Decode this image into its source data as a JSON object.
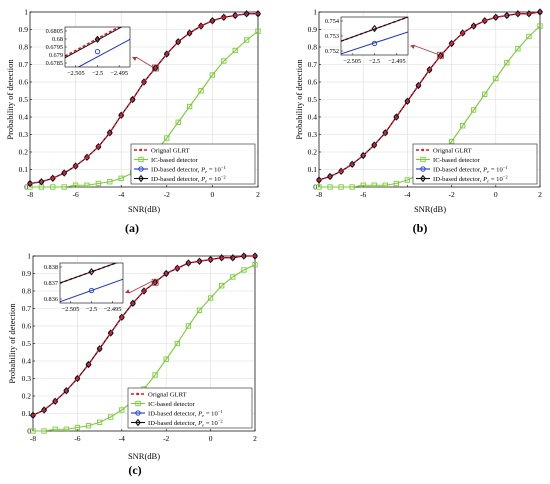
{
  "chart_data": [
    {
      "type": "line",
      "panel_label": "(a)",
      "xlabel": "SNR(dB)",
      "ylabel": "Probability of detection",
      "xlim": [
        -8,
        2
      ],
      "ylim": [
        0,
        1
      ],
      "xticks": [
        "-8",
        "-6",
        "-4",
        "-2",
        "0",
        "2"
      ],
      "yticks": [
        "0",
        "0.1",
        "0.2",
        "0.3",
        "0.4",
        "0.5",
        "0.6",
        "0.7",
        "0.8",
        "0.9",
        "1"
      ],
      "grid": true,
      "legend_position": "bottom-right",
      "x": [
        -8,
        -7.5,
        -7,
        -6.5,
        -6,
        -5.5,
        -5,
        -4.5,
        -4,
        -3.5,
        -3,
        -2.5,
        -2,
        -1.5,
        -1,
        -0.5,
        0,
        0.5,
        1,
        1.5,
        2
      ],
      "series": [
        {
          "name": "Orignal GLRT",
          "color": "#e8141c",
          "style": "dashed",
          "marker": "point",
          "values": [
            0.02,
            0.03,
            0.05,
            0.08,
            0.12,
            0.17,
            0.23,
            0.31,
            0.41,
            0.5,
            0.6,
            0.68,
            0.76,
            0.83,
            0.88,
            0.92,
            0.95,
            0.97,
            0.98,
            0.99,
            0.99
          ]
        },
        {
          "name": "IC-based detector",
          "color": "#7ccb3a",
          "style": "solid",
          "marker": "square",
          "values": [
            0,
            0,
            0,
            0,
            0.01,
            0.01,
            0.02,
            0.03,
            0.05,
            0.08,
            0.13,
            0.2,
            0.28,
            0.37,
            0.46,
            0.55,
            0.64,
            0.72,
            0.78,
            0.84,
            0.89
          ]
        },
        {
          "name": "ID-based detector, P_e = 10^-1",
          "color": "#1e36c8",
          "style": "solid",
          "marker": "circle",
          "values": [
            0.02,
            0.03,
            0.05,
            0.08,
            0.12,
            0.17,
            0.23,
            0.31,
            0.41,
            0.5,
            0.6,
            0.68,
            0.76,
            0.83,
            0.88,
            0.92,
            0.95,
            0.97,
            0.98,
            0.99,
            0.99
          ]
        },
        {
          "name": "ID-based detector, P_e = 10^-2",
          "color": "#101010",
          "style": "solid",
          "marker": "diamond",
          "values": [
            0.02,
            0.03,
            0.05,
            0.08,
            0.12,
            0.17,
            0.23,
            0.31,
            0.41,
            0.5,
            0.6,
            0.68,
            0.76,
            0.83,
            0.88,
            0.92,
            0.95,
            0.97,
            0.98,
            0.99,
            0.99
          ]
        }
      ],
      "legend_labels": [
        "Orignal GLRT",
        "IC-based detector",
        "ID-based detector, ",
        "ID-based detector, "
      ],
      "legend_math": [
        "",
        "",
        "P",
        "P"
      ],
      "legend_math_tail": [
        "",
        "",
        " = 10",
        " = 10"
      ],
      "legend_exp": [
        "",
        "",
        "−1",
        "−2"
      ],
      "inset": {
        "xticks": [
          "−2.505",
          "−2.5",
          "−2.495"
        ],
        "yticks": [
          "0.6805",
          "0.68",
          "0.6795",
          "0.679",
          "0.6785"
        ],
        "xlim": [
          -2.506,
          -2.494
        ],
        "ylim": [
          0.6782,
          0.6808
        ],
        "series": [
          {
            "color": "#e8141c",
            "style": "dashed",
            "x": [
              -2.506,
              -2.494
            ],
            "y": [
              0.6789,
              0.6812
            ]
          },
          {
            "color": "#101010",
            "style": "solid",
            "x": [
              -2.506,
              -2.494
            ],
            "y": [
              0.6788,
              0.6811
            ]
          },
          {
            "color": "#1e36c8",
            "style": "solid",
            "x": [
              -2.5035,
              -2.494
            ],
            "y": [
              0.6782,
              0.68
            ]
          }
        ],
        "markers": [
          {
            "color": "#101010",
            "shape": "diamond",
            "x": -2.5,
            "y": 0.68
          },
          {
            "color": "#1e36c8",
            "shape": "circle",
            "x": -2.5,
            "y": 0.6792
          }
        ]
      },
      "callout_point": {
        "x": -2.5,
        "y": 0.68
      }
    },
    {
      "type": "line",
      "panel_label": "(b)",
      "xlabel": "SNR(dB)",
      "ylabel": "Probability of detection",
      "xlim": [
        -8,
        2
      ],
      "ylim": [
        0,
        1
      ],
      "xticks": [
        "-8",
        "-6",
        "-4",
        "-2",
        "0",
        "2"
      ],
      "yticks": [
        "0",
        "0.1",
        "0.2",
        "0.3",
        "0.4",
        "0.5",
        "0.6",
        "0.7",
        "0.8",
        "0.9",
        "1"
      ],
      "grid": true,
      "legend_position": "bottom-right",
      "x": [
        -8,
        -7.5,
        -7,
        -6.5,
        -6,
        -5.5,
        -5,
        -4.5,
        -4,
        -3.5,
        -3,
        -2.5,
        -2,
        -1.5,
        -1,
        -0.5,
        0,
        0.5,
        1,
        1.5,
        2
      ],
      "series": [
        {
          "name": "Orignal GLRT",
          "color": "#e8141c",
          "style": "dashed",
          "marker": "point",
          "values": [
            0.04,
            0.06,
            0.09,
            0.13,
            0.18,
            0.24,
            0.31,
            0.4,
            0.49,
            0.58,
            0.67,
            0.75,
            0.82,
            0.88,
            0.92,
            0.95,
            0.97,
            0.98,
            0.99,
            0.99,
            1.0
          ]
        },
        {
          "name": "IC-based detector",
          "color": "#7ccb3a",
          "style": "solid",
          "marker": "square",
          "values": [
            0,
            0,
            0,
            0,
            0.01,
            0.01,
            0.01,
            0.02,
            0.04,
            0.07,
            0.12,
            0.18,
            0.26,
            0.35,
            0.44,
            0.53,
            0.62,
            0.71,
            0.79,
            0.86,
            0.92
          ]
        },
        {
          "name": "ID-based detector, P_e = 10^-1",
          "color": "#1e36c8",
          "style": "solid",
          "marker": "circle",
          "values": [
            0.04,
            0.06,
            0.09,
            0.13,
            0.18,
            0.24,
            0.31,
            0.4,
            0.49,
            0.58,
            0.67,
            0.75,
            0.82,
            0.88,
            0.92,
            0.95,
            0.97,
            0.98,
            0.99,
            0.99,
            1.0
          ]
        },
        {
          "name": "ID-based detector, P_e = 10^-2",
          "color": "#101010",
          "style": "solid",
          "marker": "diamond",
          "values": [
            0.04,
            0.06,
            0.09,
            0.13,
            0.18,
            0.24,
            0.31,
            0.4,
            0.49,
            0.58,
            0.67,
            0.75,
            0.82,
            0.88,
            0.92,
            0.95,
            0.97,
            0.98,
            0.99,
            0.99,
            1.0
          ]
        }
      ],
      "legend_labels": [
        "Orignal GLRT",
        "IC-based detector",
        "ID-based detector, ",
        "ID-based detector, "
      ],
      "legend_math": [
        "",
        "",
        "P",
        "P"
      ],
      "legend_math_tail": [
        "",
        "",
        " = 10",
        " = 10"
      ],
      "legend_exp": [
        "",
        "",
        "−1",
        "−2"
      ],
      "inset": {
        "xticks": [
          "−2.505",
          "−2.5",
          "−2.495"
        ],
        "yticks": [
          "0.754",
          "0.753",
          "0.752"
        ],
        "xlim": [
          -2.506,
          -2.494
        ],
        "ylim": [
          0.7512,
          0.7545
        ],
        "series": [
          {
            "color": "#e8141c",
            "style": "dashed",
            "x": [
              -2.506,
              -2.494
            ],
            "y": [
              0.7524,
              0.7545
            ]
          },
          {
            "color": "#101010",
            "style": "solid",
            "x": [
              -2.506,
              -2.494
            ],
            "y": [
              0.7524,
              0.7545
            ]
          },
          {
            "color": "#1e36c8",
            "style": "solid",
            "x": [
              -2.506,
              -2.494
            ],
            "y": [
              0.7513,
              0.7532
            ]
          }
        ],
        "markers": [
          {
            "color": "#101010",
            "shape": "diamond",
            "x": -2.5,
            "y": 0.7535
          },
          {
            "color": "#1e36c8",
            "shape": "circle",
            "x": -2.5,
            "y": 0.7522
          }
        ]
      },
      "callout_point": {
        "x": -2.5,
        "y": 0.753
      }
    },
    {
      "type": "line",
      "panel_label": "(c)",
      "xlabel": "SNR(dB)",
      "ylabel": "Probability of detection",
      "xlim": [
        -8,
        2
      ],
      "ylim": [
        0,
        1
      ],
      "xticks": [
        "-8",
        "-6",
        "-4",
        "-2",
        "0",
        "2"
      ],
      "yticks": [
        "0",
        "0.1",
        "0.2",
        "0.3",
        "0.4",
        "0.5",
        "0.6",
        "0.7",
        "0.8",
        "0.9",
        "1"
      ],
      "grid": true,
      "legend_position": "bottom-right",
      "x": [
        -8,
        -7.5,
        -7,
        -6.5,
        -6,
        -5.5,
        -5,
        -4.5,
        -4,
        -3.5,
        -3,
        -2.5,
        -2,
        -1.5,
        -1,
        -0.5,
        0,
        0.5,
        1,
        1.5,
        2
      ],
      "series": [
        {
          "name": "Orignal GLRT",
          "color": "#e8141c",
          "style": "dashed",
          "marker": "point",
          "values": [
            0.09,
            0.12,
            0.17,
            0.23,
            0.3,
            0.38,
            0.47,
            0.56,
            0.65,
            0.73,
            0.8,
            0.85,
            0.9,
            0.93,
            0.96,
            0.97,
            0.98,
            0.99,
            0.99,
            1.0,
            1.0
          ]
        },
        {
          "name": "IC-based detector",
          "color": "#7ccb3a",
          "style": "solid",
          "marker": "square",
          "values": [
            0,
            0,
            0.01,
            0.01,
            0.02,
            0.03,
            0.05,
            0.08,
            0.12,
            0.17,
            0.24,
            0.32,
            0.41,
            0.5,
            0.6,
            0.69,
            0.76,
            0.83,
            0.88,
            0.92,
            0.95
          ]
        },
        {
          "name": "ID-based detector, P_e = 10^-1",
          "color": "#1e36c8",
          "style": "solid",
          "marker": "circle",
          "values": [
            0.09,
            0.12,
            0.17,
            0.23,
            0.3,
            0.38,
            0.47,
            0.56,
            0.65,
            0.73,
            0.8,
            0.85,
            0.9,
            0.93,
            0.96,
            0.97,
            0.98,
            0.99,
            0.99,
            1.0,
            1.0
          ]
        },
        {
          "name": "ID-based detector, P_e = 10^-2",
          "color": "#101010",
          "style": "solid",
          "marker": "diamond",
          "values": [
            0.09,
            0.12,
            0.17,
            0.23,
            0.3,
            0.38,
            0.47,
            0.56,
            0.65,
            0.73,
            0.8,
            0.85,
            0.9,
            0.93,
            0.96,
            0.97,
            0.98,
            0.99,
            0.99,
            1.0,
            1.0
          ]
        }
      ],
      "legend_labels": [
        "Orignal GLRT",
        "IC-based detector",
        "ID-based detector, ",
        "ID-based detector, "
      ],
      "legend_math": [
        "",
        "",
        "P",
        "P"
      ],
      "legend_math_tail": [
        "",
        "",
        " = 10",
        " = 10"
      ],
      "legend_exp": [
        "",
        "",
        "−1",
        "−2"
      ],
      "inset": {
        "xticks": [
          "−2.505",
          "−2.5",
          "−2.495"
        ],
        "yticks": [
          "0.838",
          "0.837",
          "0.836"
        ],
        "xlim": [
          -2.506,
          -2.494
        ],
        "ylim": [
          0.8353,
          0.8385
        ],
        "series": [
          {
            "color": "#e8141c",
            "style": "dashed",
            "x": [
              -2.506,
              -2.494
            ],
            "y": [
              0.8369,
              0.8387
            ]
          },
          {
            "color": "#101010",
            "style": "solid",
            "x": [
              -2.506,
              -2.494
            ],
            "y": [
              0.8369,
              0.8387
            ]
          },
          {
            "color": "#1e36c8",
            "style": "solid",
            "x": [
              -2.506,
              -2.494
            ],
            "y": [
              0.8354,
              0.8372
            ]
          }
        ],
        "markers": [
          {
            "color": "#101010",
            "shape": "diamond",
            "x": -2.5,
            "y": 0.8378
          },
          {
            "color": "#1e36c8",
            "shape": "circle",
            "x": -2.5,
            "y": 0.8363
          }
        ]
      },
      "callout_point": {
        "x": -2.5,
        "y": 0.85
      }
    }
  ]
}
